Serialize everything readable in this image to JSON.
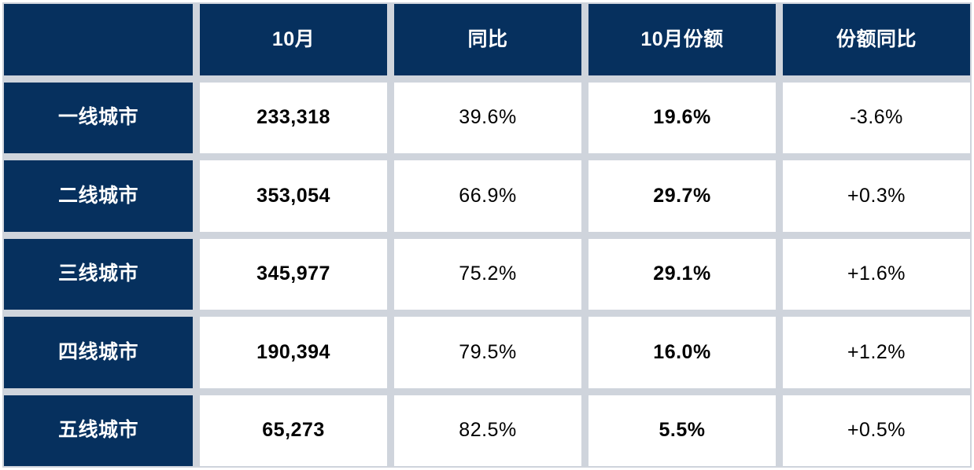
{
  "chart_data": {
    "type": "table",
    "columns": [
      "",
      "10月",
      "同比",
      "10月份额",
      "份额同比"
    ],
    "rows": [
      {
        "label": "一线城市",
        "values": [
          "233,318",
          "39.6%",
          "19.6%",
          "-3.6%"
        ]
      },
      {
        "label": "二线城市",
        "values": [
          "353,054",
          "66.9%",
          "29.7%",
          "+0.3%"
        ]
      },
      {
        "label": "三线城市",
        "values": [
          "345,977",
          "75.2%",
          "29.1%",
          "+1.6%"
        ]
      },
      {
        "label": "四线城市",
        "values": [
          "190,394",
          "79.5%",
          "16.0%",
          "+1.2%"
        ]
      },
      {
        "label": "五线城市",
        "values": [
          "65,273",
          "82.5%",
          "5.5%",
          "+0.5%"
        ]
      }
    ]
  },
  "colors": {
    "header_bg": "#06305e",
    "header_text": "#ffffff",
    "grid_line": "#cfd4dc",
    "cell_bg": "#ffffff",
    "cell_text": "#000000"
  }
}
